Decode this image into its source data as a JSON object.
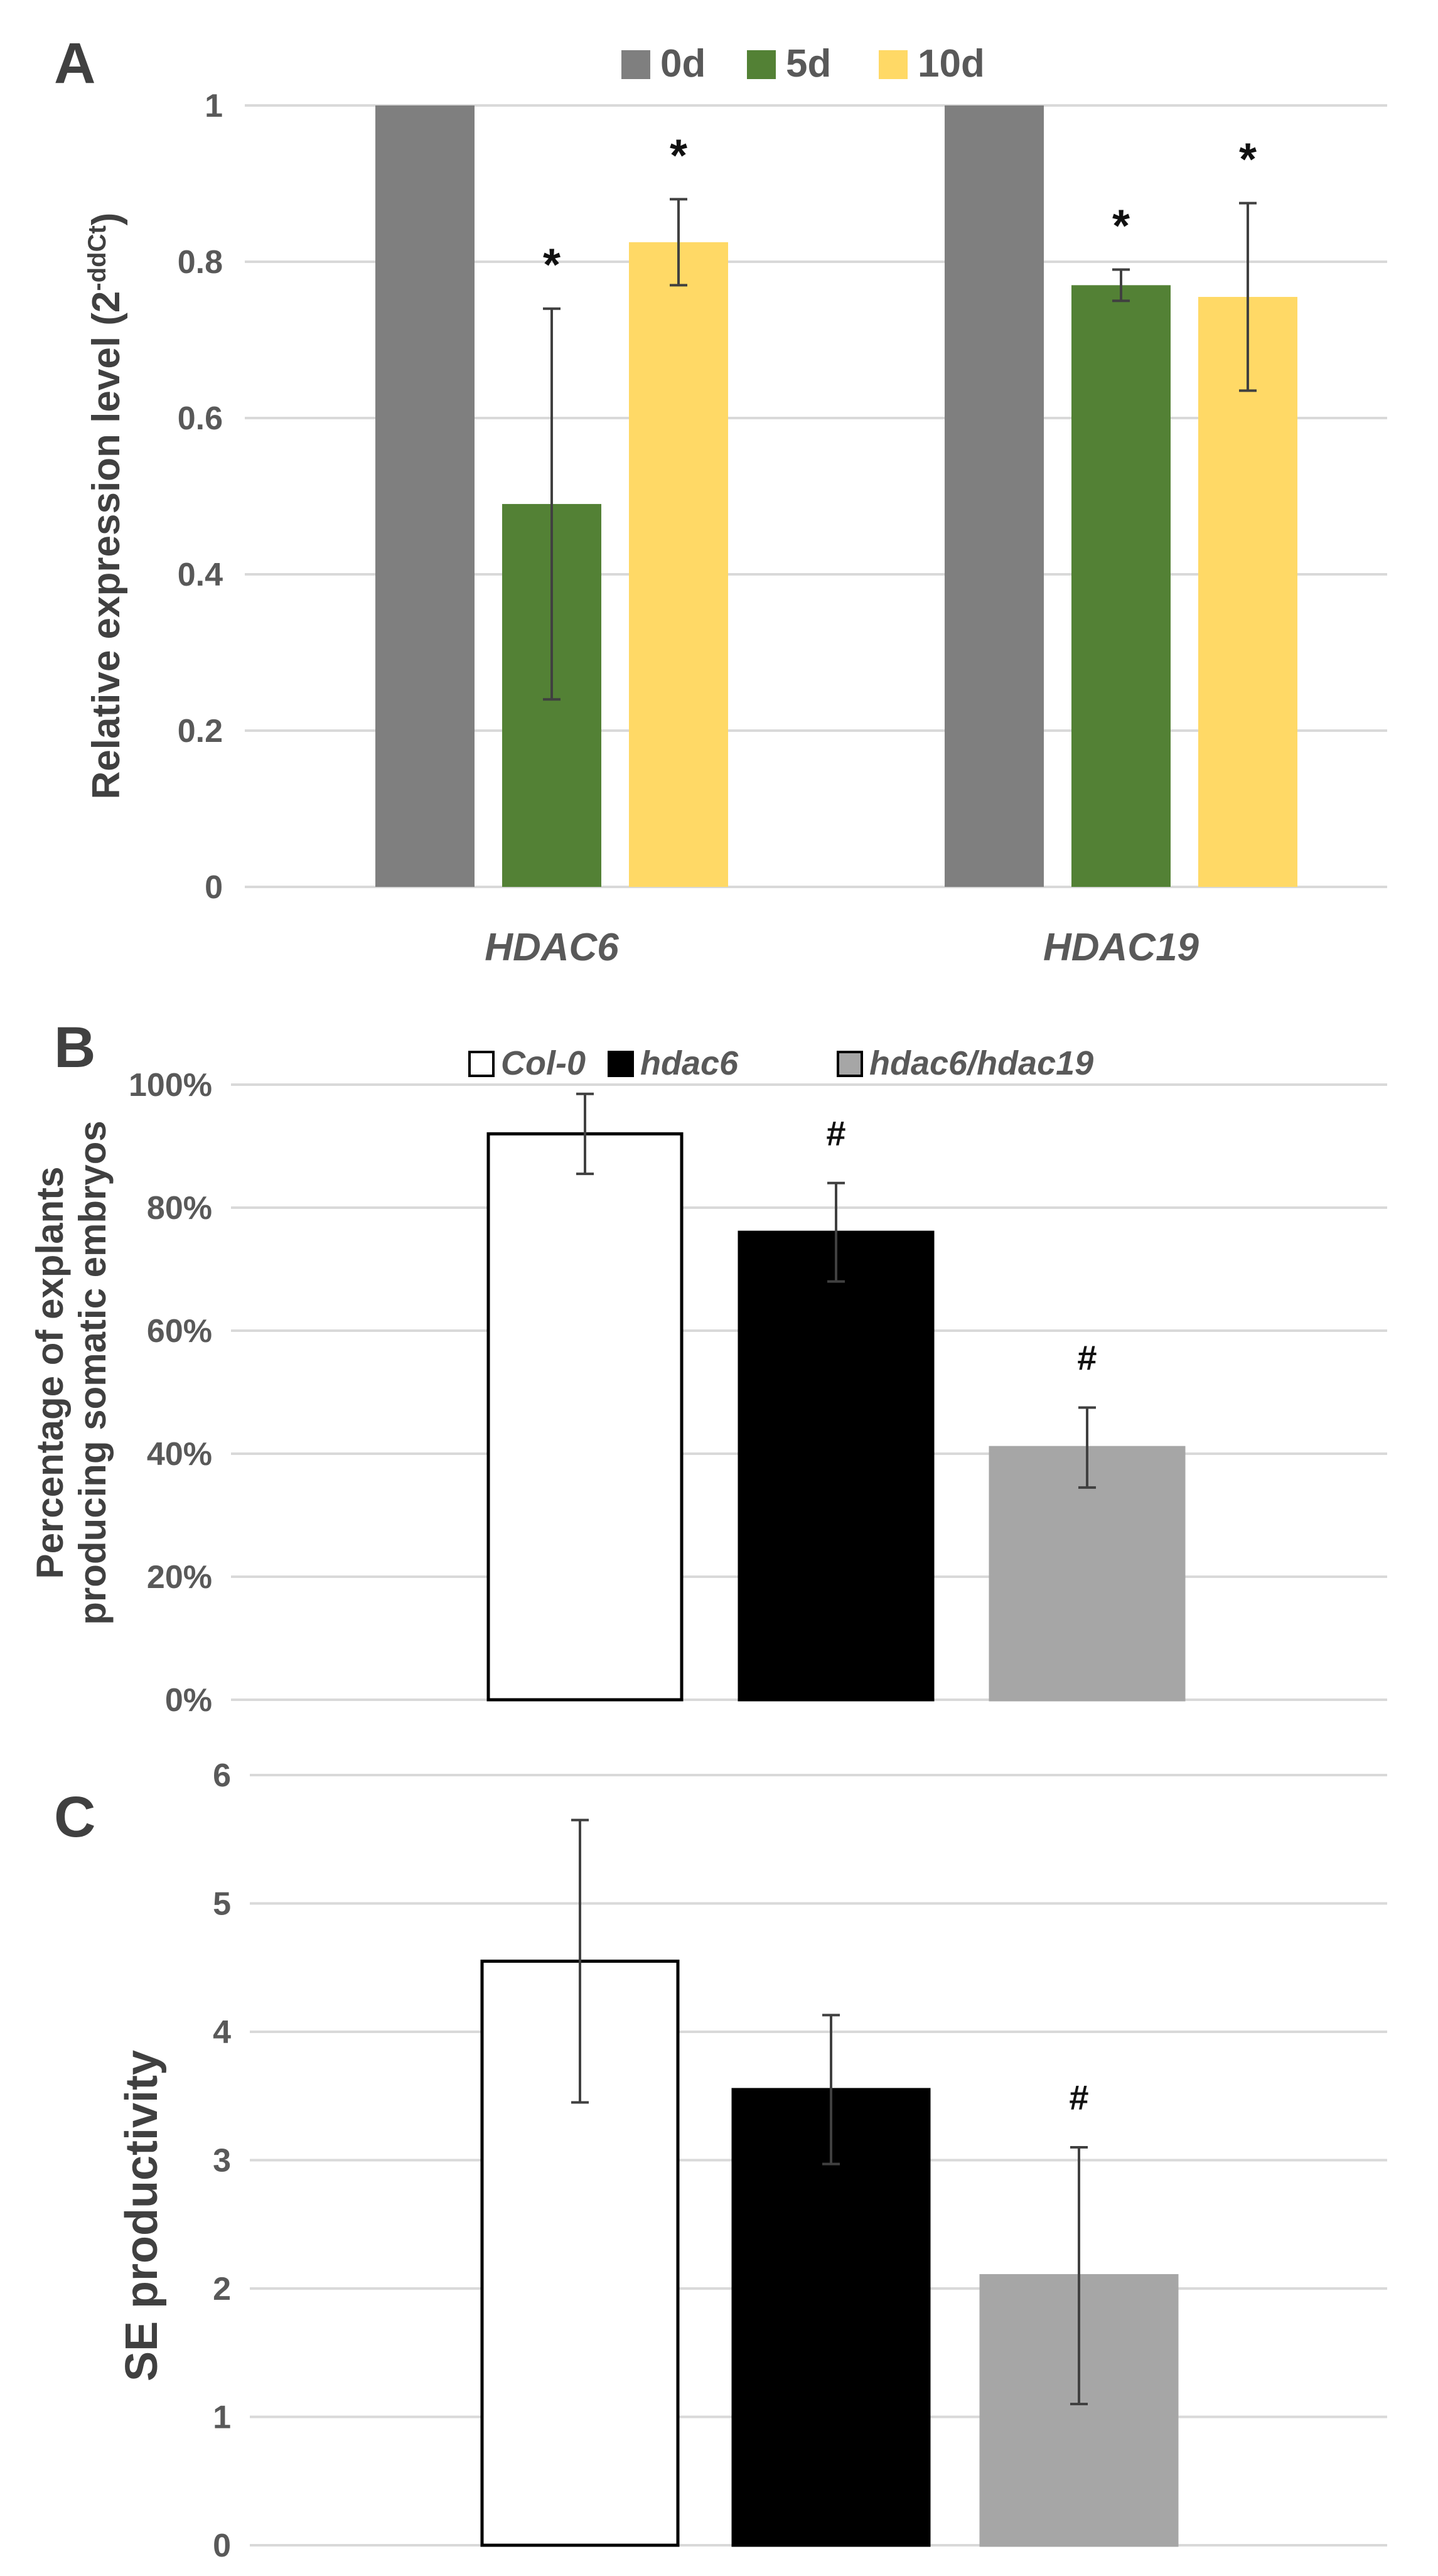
{
  "chart_data": [
    {
      "panel": "A",
      "type": "bar",
      "ylabel": "Relative expression level (2",
      "ylabel_superscript": "-ddCt",
      "ylabel_close": ")",
      "ylim": [
        0,
        1
      ],
      "yticks": [
        "0",
        "0.2",
        "0.4",
        "0.6",
        "0.8",
        "1"
      ],
      "grid": true,
      "legend_position": "top",
      "categories": [
        "HDAC6",
        "HDAC19"
      ],
      "series": [
        {
          "name": "0d",
          "color": "#7f7f7f",
          "values": [
            1.0,
            1.0
          ],
          "errors": [
            null,
            null
          ],
          "marks": [
            "",
            ""
          ]
        },
        {
          "name": "5d",
          "color": "#538135",
          "values": [
            0.49,
            0.77
          ],
          "errors": [
            0.25,
            0.02
          ],
          "marks": [
            "*",
            "*"
          ]
        },
        {
          "name": "10d",
          "color": "#ffd966",
          "values": [
            0.825,
            0.755
          ],
          "errors": [
            0.055,
            0.12
          ],
          "marks": [
            "*",
            "*"
          ]
        }
      ]
    },
    {
      "panel": "B",
      "type": "bar",
      "ylabel_lines": [
        "Percentage of explants",
        "producing somatic embryos"
      ],
      "ylim": [
        0,
        100
      ],
      "yticks": [
        "0%",
        "20%",
        "40%",
        "60%",
        "80%",
        "100%"
      ],
      "grid": true,
      "legend_position": "top",
      "series": [
        {
          "name": "Col-0",
          "fill": "#ffffff",
          "stroke": "#000000",
          "value": 92,
          "error": 6.5,
          "mark": ""
        },
        {
          "name": "hdac6",
          "fill": "#000000",
          "stroke": "#000000",
          "value": 76,
          "error": 8,
          "mark": "#"
        },
        {
          "name": "hdac6/hdac19",
          "fill": "#a6a6a6",
          "stroke": "#a6a6a6",
          "value": 41,
          "error": 6.5,
          "mark": "#"
        }
      ]
    },
    {
      "panel": "C",
      "type": "bar",
      "ylabel": "SE productivity",
      "ylim": [
        0,
        6
      ],
      "yticks": [
        "0",
        "1",
        "2",
        "3",
        "4",
        "5",
        "6"
      ],
      "grid": true,
      "series": [
        {
          "name": "Col-0",
          "fill": "#ffffff",
          "stroke": "#000000",
          "value": 4.55,
          "error": 1.1,
          "mark": ""
        },
        {
          "name": "hdac6",
          "fill": "#000000",
          "stroke": "#000000",
          "value": 3.55,
          "error": 0.58,
          "mark": ""
        },
        {
          "name": "hdac6/hdac19",
          "fill": "#a6a6a6",
          "stroke": "#a6a6a6",
          "value": 2.1,
          "error": 1.0,
          "mark": "#"
        }
      ]
    }
  ]
}
